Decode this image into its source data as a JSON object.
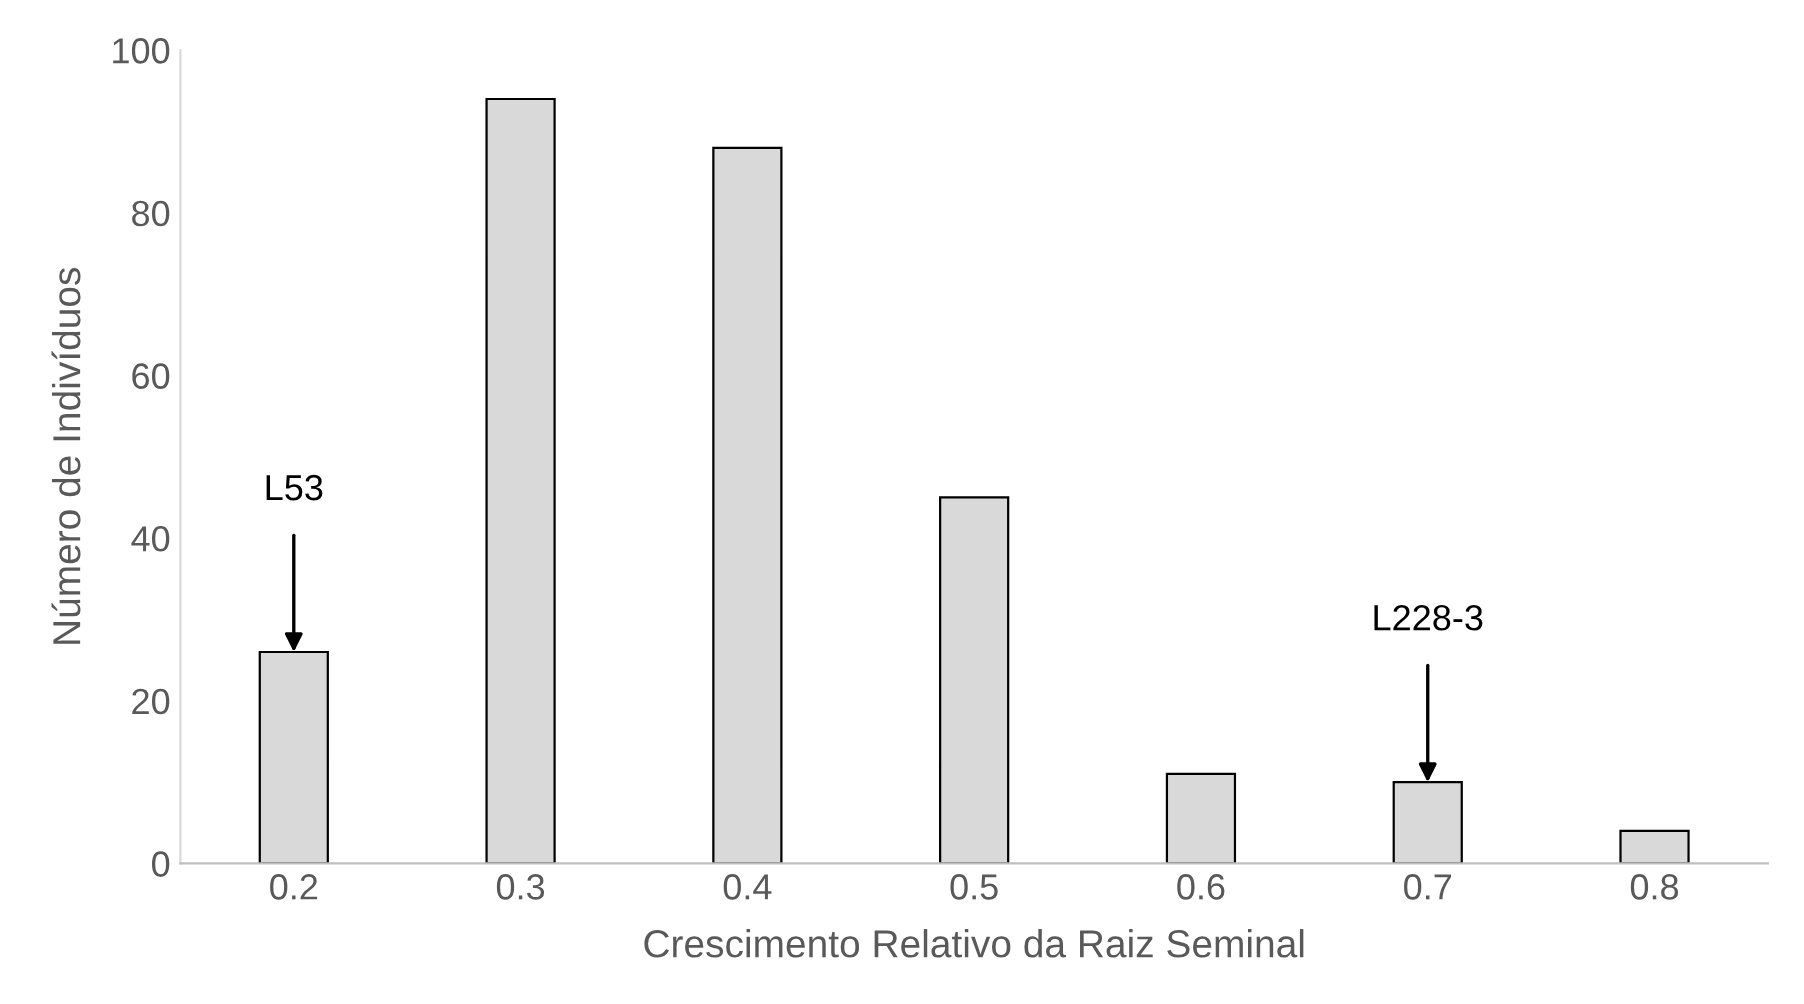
{
  "chart_data": {
    "type": "bar",
    "xlabel": "Crescimento Relativo da Raiz Seminal",
    "ylabel": "Número de Indivíduos",
    "categories": [
      "0.2",
      "0.3",
      "0.4",
      "0.5",
      "0.6",
      "0.7",
      "0.8"
    ],
    "values": [
      26,
      94,
      88,
      45,
      11,
      10,
      4
    ],
    "color": "#d9d9d9",
    "ylim": [
      0,
      100
    ],
    "yticks": [
      0,
      20,
      40,
      60,
      80,
      100
    ],
    "grid": false,
    "annotations": [
      {
        "text": "L53",
        "x": "0.2",
        "y": 26
      },
      {
        "text": "L228-3",
        "x": "0.7",
        "y": 10
      }
    ]
  }
}
